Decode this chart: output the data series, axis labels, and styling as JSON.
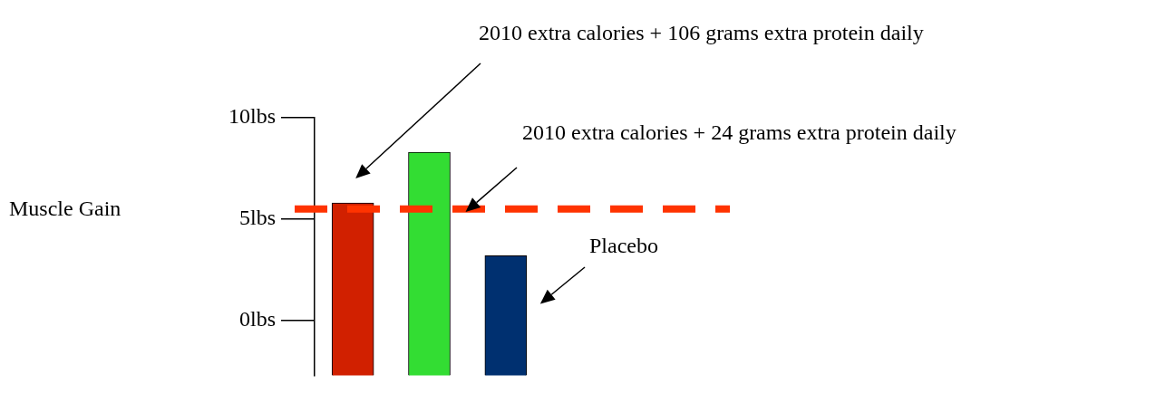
{
  "chart_data": {
    "type": "bar",
    "ylabel": "Muscle Gain",
    "categories": [
      null,
      null,
      null
    ],
    "base": [
      -2.7,
      -2.7,
      -2.7
    ],
    "values": [
      8.5,
      11,
      5.9
    ],
    "colors": [
      "#d12000",
      "#33dd33",
      "#003070"
    ],
    "ylim": [
      -2.7,
      10
    ],
    "yticks": [
      {
        "value": 0,
        "label": "0lbs"
      },
      {
        "value": 5,
        "label": "5lbs"
      },
      {
        "value": 10,
        "label": "10lbs"
      }
    ],
    "ref_lines": [
      {
        "axis": "y",
        "value": 5.5,
        "color": "#ff3300",
        "line_style": "dashed"
      }
    ],
    "annotations": [
      "2010 extra calories + 106 grams extra protein daily",
      "2010 extra calories + 24 grams extra protein daily",
      "Placebo"
    ]
  }
}
